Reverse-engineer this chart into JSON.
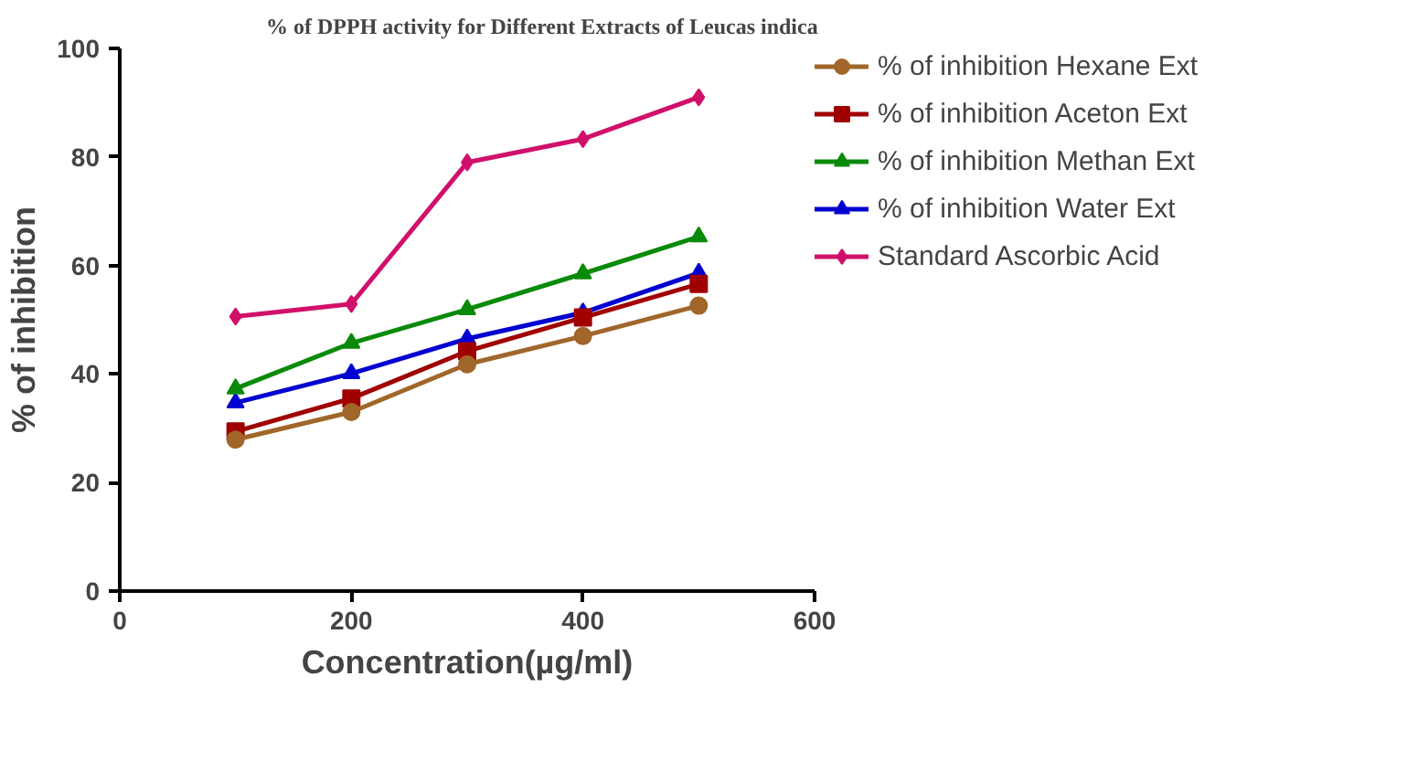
{
  "chart_data": {
    "type": "line",
    "title": "% of DPPH activity for Different Extracts of  Leucas indica",
    "xlabel": "Concentration(µg/ml)",
    "ylabel": "% of inhibition",
    "x": [
      100,
      200,
      300,
      400,
      500
    ],
    "series": [
      {
        "name": "% of inhibition Hexane Ext",
        "color": "#a0662a",
        "marker": "circle",
        "values": [
          27.9,
          33.0,
          41.8,
          47.0,
          52.6
        ]
      },
      {
        "name": "% of inhibition Aceton Ext",
        "color": "#a00000",
        "marker": "square",
        "values": [
          29.4,
          35.5,
          44.2,
          50.4,
          56.6
        ]
      },
      {
        "name": "% of inhibition Methan Ext",
        "color": "#0a8a0a",
        "marker": "triangle",
        "values": [
          37.3,
          45.7,
          51.9,
          58.5,
          65.3
        ]
      },
      {
        "name": "% of inhibition Water Ext",
        "color": "#0000d0",
        "marker": "triangle",
        "values": [
          34.7,
          40.1,
          46.5,
          51.3,
          58.6
        ]
      },
      {
        "name": "Standard Ascorbic Acid",
        "color": "#d0106a",
        "marker": "diamond",
        "values": [
          50.6,
          52.9,
          79.0,
          83.3,
          91.0
        ]
      }
    ],
    "xlim": [
      0,
      600
    ],
    "xticks": [
      0,
      200,
      400,
      600
    ],
    "ylim": [
      0,
      100
    ],
    "yticks": [
      0,
      20,
      40,
      60,
      80,
      100
    ],
    "grid": false,
    "legend": "right",
    "line_style": "solid"
  }
}
